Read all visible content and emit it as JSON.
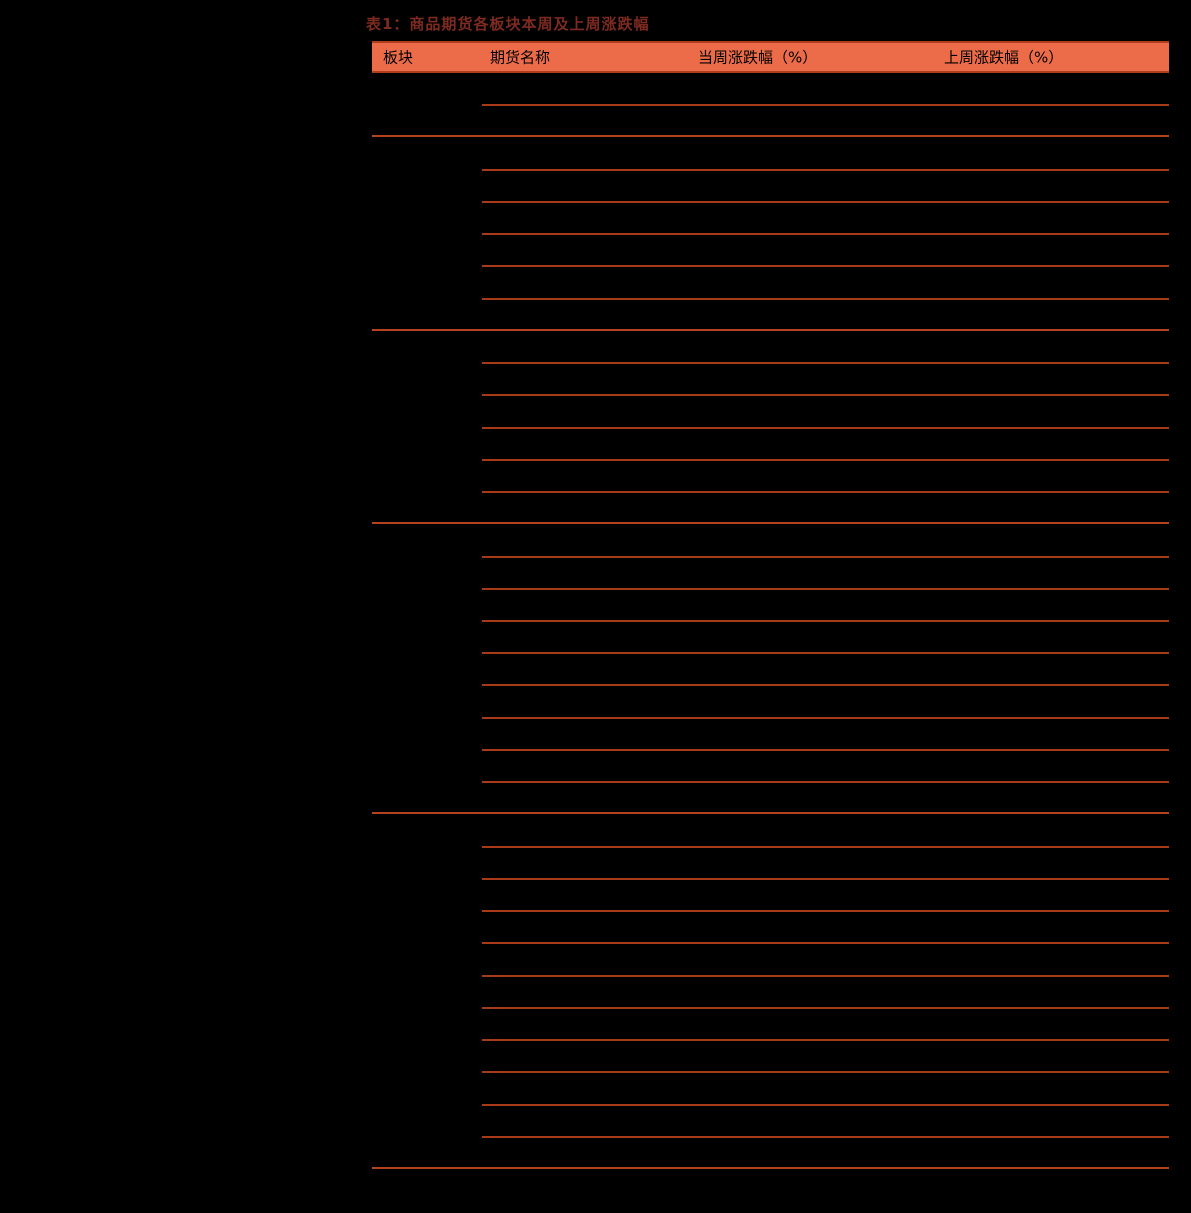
{
  "page": {
    "background": "#000000"
  },
  "table": {
    "title": "表1：商品期货各板块本周及上周涨跌幅",
    "columns": [
      "板块",
      "期货名称",
      "当周涨跌幅（%）",
      "上周涨跌幅（%）"
    ],
    "groups": [
      {
        "rows": 2
      },
      {
        "rows": 6
      },
      {
        "rows": 6
      },
      {
        "rows": 9
      },
      {
        "rows": 11
      }
    ],
    "colors": {
      "title_color": "#7D2A20",
      "header_bg": "#EC6C49",
      "header_border": "#B03D1E",
      "header_text": "#000000",
      "group_line": "#B5411F",
      "row_line": "#A93A17"
    }
  }
}
